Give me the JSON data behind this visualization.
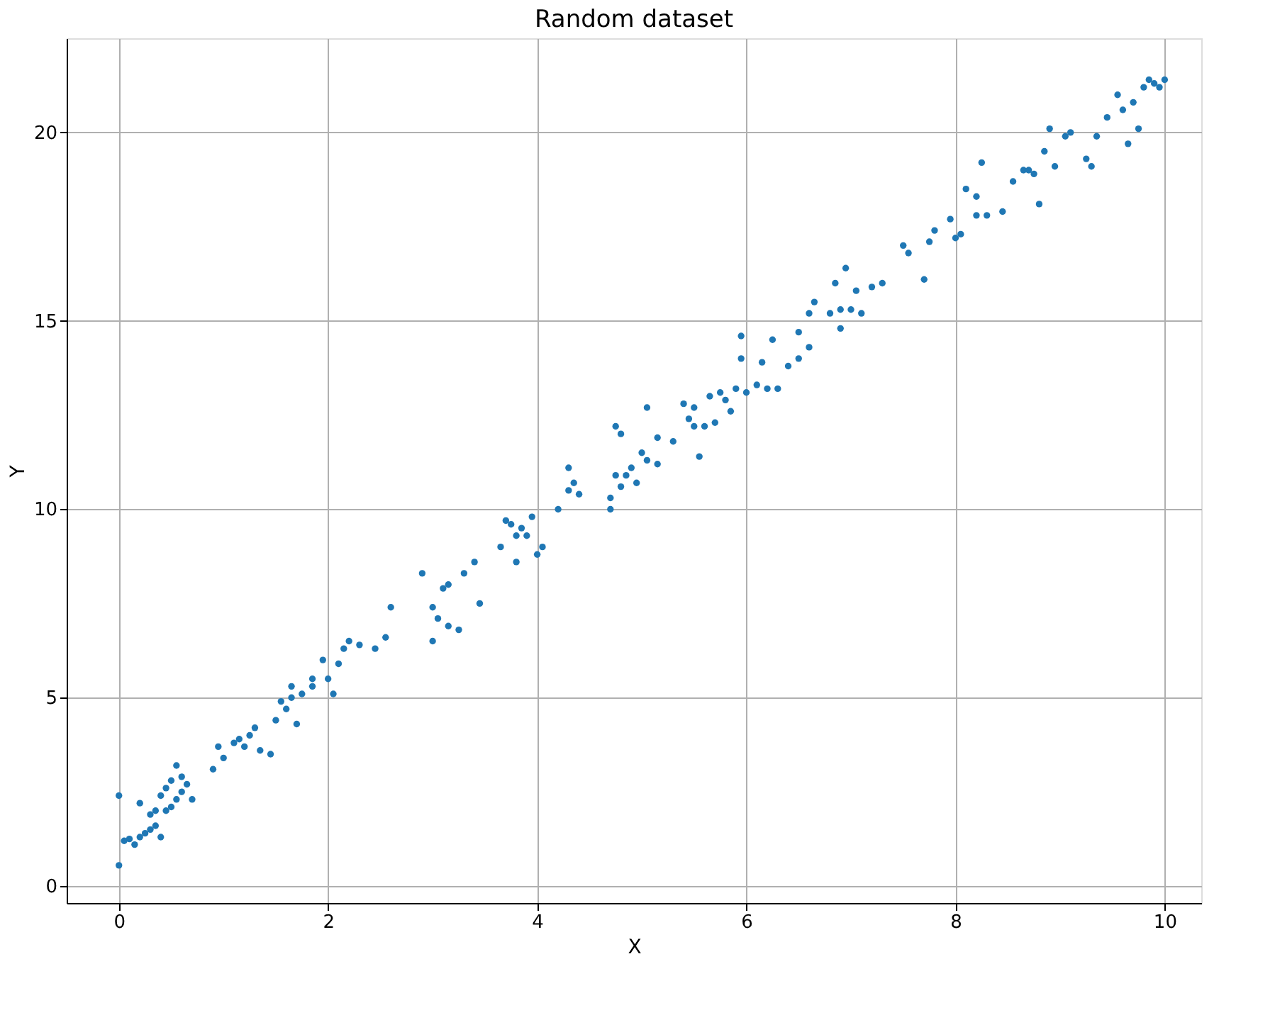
{
  "chart_data": {
    "type": "scatter",
    "title": "Random dataset",
    "xlabel": "X",
    "ylabel": "Y",
    "xlim": [
      -0.5,
      10.35
    ],
    "ylim": [
      -0.45,
      22.5
    ],
    "xticks": [
      0,
      2,
      4,
      6,
      8,
      10
    ],
    "yticks": [
      0,
      5,
      10,
      15,
      20
    ],
    "grid": true,
    "marker": "circle",
    "series": [
      {
        "color": "#1f77b4",
        "x": [
          0.0,
          0.0,
          0.05,
          0.1,
          0.15,
          0.2,
          0.2,
          0.25,
          0.3,
          0.3,
          0.35,
          0.35,
          0.4,
          0.4,
          0.45,
          0.45,
          0.5,
          0.5,
          0.55,
          0.55,
          0.6,
          0.6,
          0.65,
          0.7,
          0.9,
          0.95,
          1.0,
          1.1,
          1.15,
          1.2,
          1.25,
          1.3,
          1.35,
          1.45,
          1.5,
          1.55,
          1.6,
          1.65,
          1.65,
          1.7,
          1.75,
          1.85,
          1.85,
          1.95,
          2.0,
          2.05,
          2.1,
          2.15,
          2.2,
          2.3,
          2.45,
          2.55,
          2.6,
          2.9,
          3.0,
          3.0,
          3.05,
          3.1,
          3.15,
          3.15,
          3.25,
          3.3,
          3.4,
          3.45,
          3.65,
          3.7,
          3.75,
          3.8,
          3.8,
          3.85,
          3.9,
          3.95,
          4.0,
          4.05,
          4.2,
          4.3,
          4.3,
          4.35,
          4.4,
          4.7,
          4.7,
          4.75,
          4.75,
          4.8,
          4.8,
          4.85,
          4.9,
          4.95,
          5.0,
          5.05,
          5.05,
          5.15,
          5.15,
          5.3,
          5.4,
          5.45,
          5.5,
          5.5,
          5.55,
          5.6,
          5.65,
          5.7,
          5.75,
          5.8,
          5.85,
          5.9,
          5.95,
          5.95,
          6.0,
          6.1,
          6.15,
          6.2,
          6.25,
          6.3,
          6.4,
          6.5,
          6.5,
          6.6,
          6.6,
          6.65,
          6.8,
          6.85,
          6.9,
          6.9,
          6.95,
          7.0,
          7.05,
          7.1,
          7.2,
          7.3,
          7.5,
          7.55,
          7.7,
          7.75,
          7.8,
          7.95,
          8.0,
          8.05,
          8.1,
          8.2,
          8.2,
          8.25,
          8.3,
          8.45,
          8.55,
          8.65,
          8.7,
          8.75,
          8.8,
          8.85,
          8.9,
          8.95,
          9.05,
          9.1,
          9.25,
          9.3,
          9.35,
          9.45,
          9.55,
          9.6,
          9.65,
          9.7,
          9.8,
          9.85,
          9.9,
          9.95,
          10.0,
          9.75
        ],
        "values": [
          2.4,
          0.55,
          1.2,
          1.25,
          1.1,
          1.3,
          2.2,
          1.4,
          1.5,
          1.9,
          2.0,
          1.6,
          1.3,
          2.4,
          2.0,
          2.6,
          2.8,
          2.1,
          3.2,
          2.3,
          2.9,
          2.5,
          2.7,
          2.3,
          3.1,
          3.7,
          3.4,
          3.8,
          3.9,
          3.7,
          4.0,
          4.2,
          3.6,
          3.5,
          4.4,
          4.9,
          4.7,
          5.0,
          5.3,
          4.3,
          5.1,
          5.3,
          5.5,
          6.0,
          5.5,
          5.1,
          5.9,
          6.3,
          6.5,
          6.4,
          6.3,
          6.6,
          7.4,
          8.3,
          7.4,
          6.5,
          7.1,
          7.9,
          8.0,
          6.9,
          6.8,
          8.3,
          8.6,
          7.5,
          9.0,
          9.7,
          9.6,
          8.6,
          9.3,
          9.5,
          9.3,
          9.8,
          8.8,
          9.0,
          10.0,
          11.1,
          10.5,
          10.7,
          10.4,
          10.3,
          10.0,
          10.9,
          12.2,
          12.0,
          10.6,
          10.9,
          11.1,
          10.7,
          11.5,
          12.7,
          11.3,
          11.9,
          11.2,
          11.8,
          12.8,
          12.4,
          12.2,
          12.7,
          11.4,
          12.2,
          13.0,
          12.3,
          13.1,
          12.9,
          12.6,
          13.2,
          14.0,
          14.6,
          13.1,
          13.3,
          13.9,
          13.2,
          14.5,
          13.2,
          13.8,
          14.0,
          14.7,
          14.3,
          15.2,
          15.5,
          15.2,
          16.0,
          15.3,
          14.8,
          16.4,
          15.3,
          15.8,
          15.2,
          15.9,
          16.0,
          17.0,
          16.8,
          16.1,
          17.1,
          17.4,
          17.7,
          17.2,
          17.3,
          18.5,
          18.3,
          17.8,
          19.2,
          17.8,
          17.9,
          18.7,
          19.0,
          19.0,
          18.9,
          18.1,
          19.5,
          20.1,
          19.1,
          19.9,
          20.0,
          19.3,
          19.1,
          19.9,
          20.4,
          21.0,
          20.6,
          19.7,
          20.8,
          21.2,
          21.4,
          21.3,
          21.2,
          21.4,
          20.1
        ]
      }
    ]
  }
}
